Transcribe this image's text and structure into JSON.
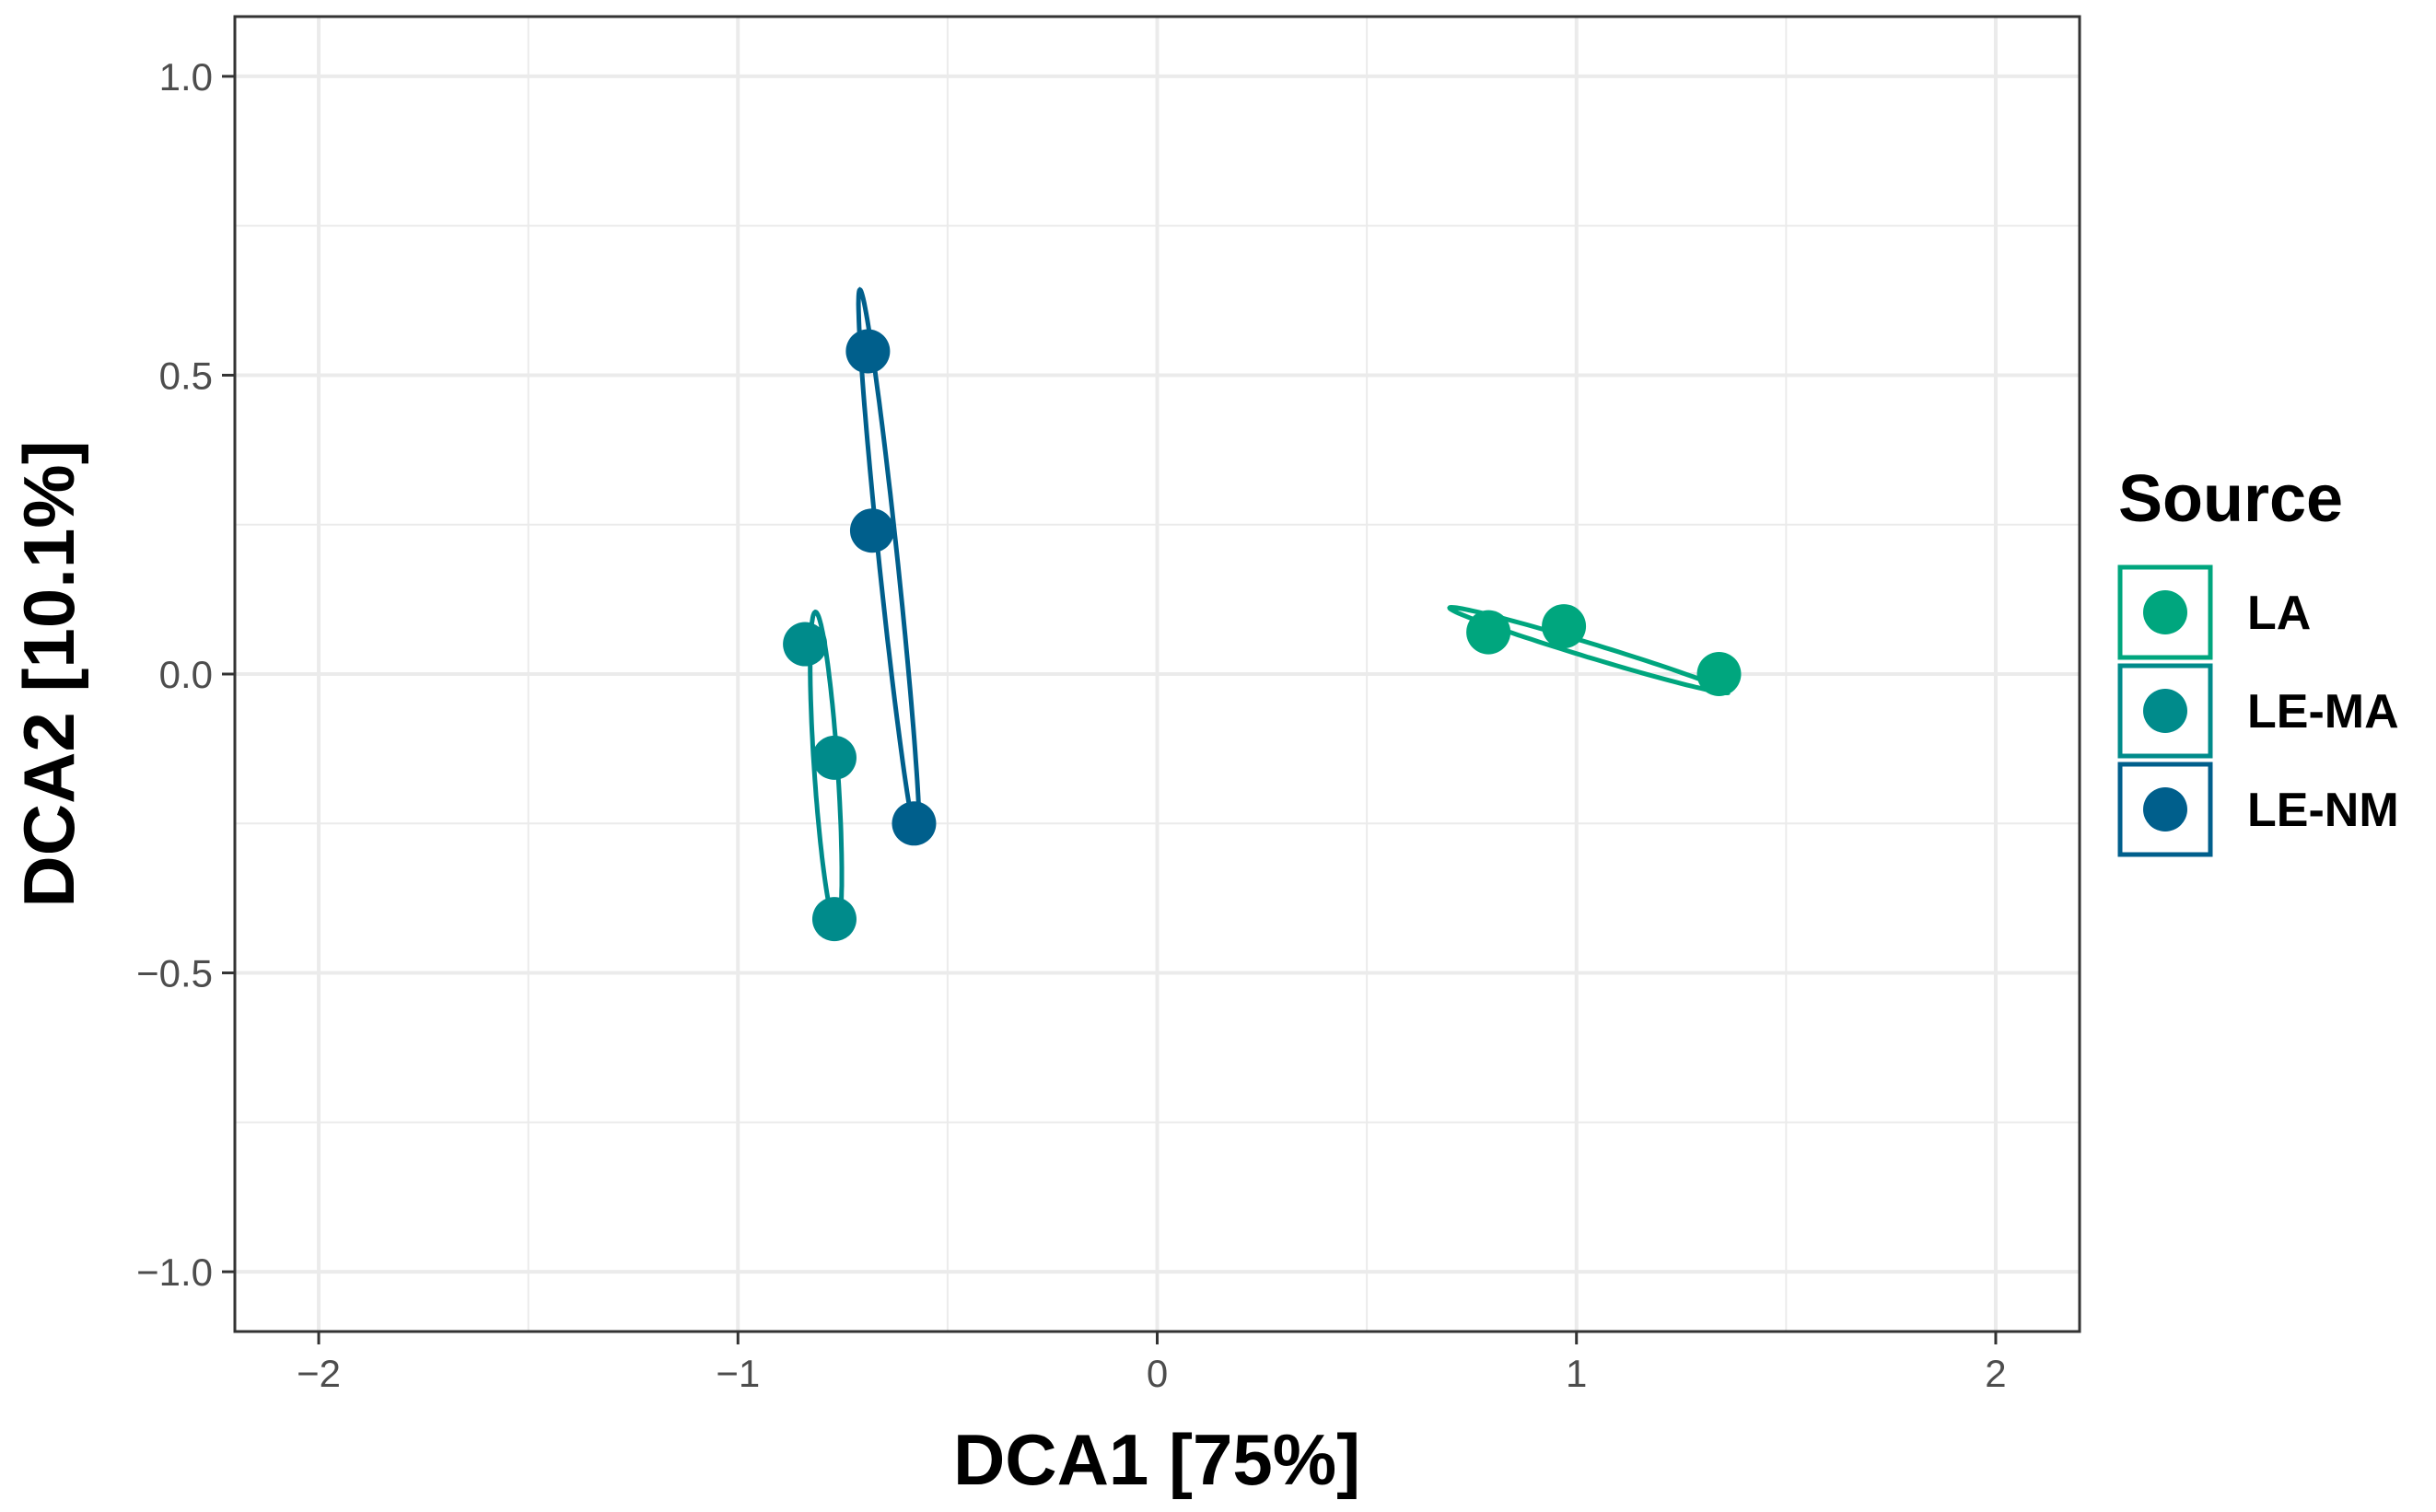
{
  "chart_data": {
    "type": "scatter",
    "title": "",
    "xlabel": "DCA1   [75%]",
    "ylabel": "DCA2   [10.1%]",
    "xlim": [
      -2.2,
      2.2
    ],
    "ylim": [
      -1.1,
      1.1
    ],
    "x_ticks": [
      -2,
      -1,
      0,
      1,
      2
    ],
    "x_tick_labels": [
      "−2",
      "−1",
      "0",
      "1",
      "2"
    ],
    "y_ticks": [
      -1.0,
      -0.5,
      0.0,
      0.5,
      1.0
    ],
    "y_tick_labels": [
      "−1.0",
      "−0.5",
      "0.0",
      "0.5",
      "1.0"
    ],
    "grid": true,
    "legend": {
      "title": "Source",
      "position": "right"
    },
    "series": [
      {
        "name": "LA",
        "color": "#00a67e",
        "points": [
          {
            "x": 0.79,
            "y": 0.07
          },
          {
            "x": 0.97,
            "y": 0.08
          },
          {
            "x": 1.34,
            "y": 0.0
          }
        ],
        "ellipse": {
          "cx": 1.03,
          "cy": 0.04,
          "semi_major": 0.34,
          "semi_minor": 0.012,
          "angle_deg": -12
        }
      },
      {
        "name": "LE-MA",
        "color": "#008b8b",
        "points": [
          {
            "x": -0.84,
            "y": 0.05
          },
          {
            "x": -0.77,
            "y": -0.14
          },
          {
            "x": -0.77,
            "y": -0.41
          }
        ],
        "ellipse": {
          "cx": -0.79,
          "cy": -0.16,
          "semi_major": 0.265,
          "semi_minor": 0.028,
          "angle_deg": -84.5
        }
      },
      {
        "name": "LE-NM",
        "color": "#005f8c",
        "points": [
          {
            "x": -0.69,
            "y": 0.54
          },
          {
            "x": -0.68,
            "y": 0.24
          },
          {
            "x": -0.58,
            "y": -0.25
          }
        ],
        "ellipse": {
          "cx": -0.64,
          "cy": 0.18,
          "semi_major": 0.468,
          "semi_minor": 0.022,
          "angle_deg": -81.5
        }
      }
    ]
  }
}
